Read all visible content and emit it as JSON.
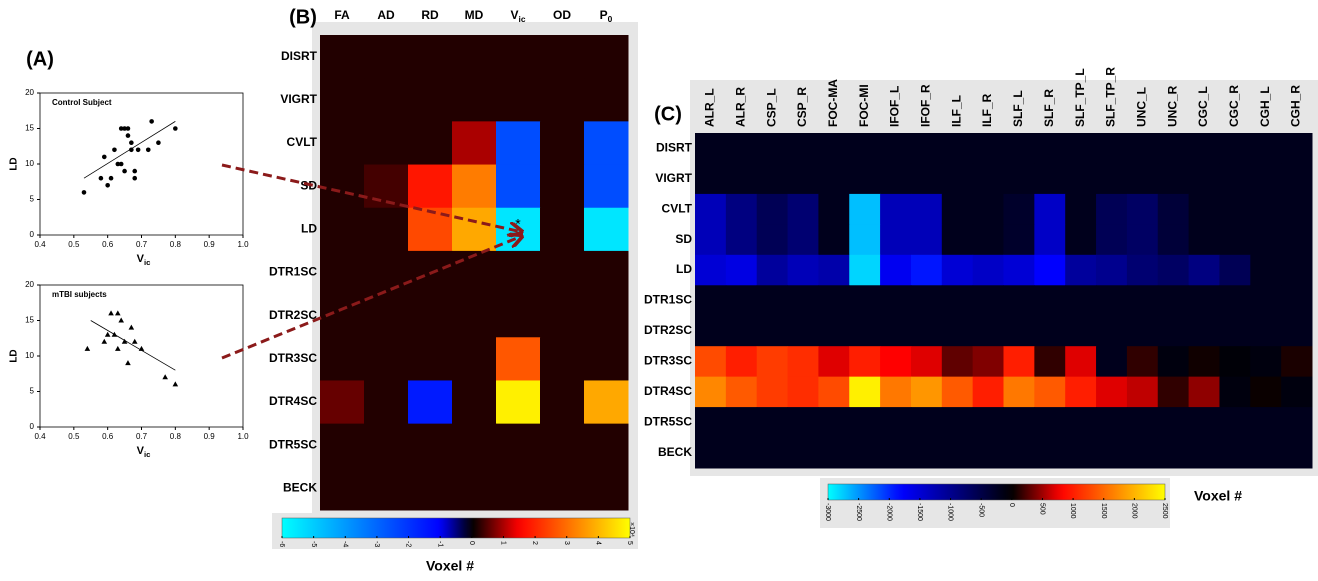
{
  "chart_data": [
    {
      "type": "scatter",
      "panel_label": "(A)",
      "title": "Control Subject",
      "marker": "circle",
      "color": "#000000",
      "x": [
        0.53,
        0.58,
        0.59,
        0.6,
        0.61,
        0.62,
        0.63,
        0.64,
        0.64,
        0.65,
        0.65,
        0.66,
        0.66,
        0.67,
        0.67,
        0.68,
        0.68,
        0.69,
        0.72,
        0.73,
        0.75,
        0.8
      ],
      "y": [
        6,
        8,
        11,
        7,
        8,
        12,
        10,
        15,
        10,
        15,
        9,
        14,
        15,
        13,
        12,
        9,
        8,
        12,
        12,
        16,
        13,
        15
      ],
      "fit": {
        "x": [
          0.53,
          0.8
        ],
        "y": [
          8,
          16
        ]
      },
      "xlim": [
        0.4,
        1.0
      ],
      "xticks": [
        0.4,
        0.5,
        0.6,
        0.7,
        0.8,
        0.9,
        {
          "value": 1,
          "label": "1.0"
        }
      ],
      "ylim": [
        0,
        20
      ],
      "yticks": [
        0,
        5,
        10,
        15,
        20
      ],
      "x_label": {
        "text": "V",
        "sub": "ic"
      },
      "y_label": "LD"
    },
    {
      "type": "scatter",
      "title": "mTBI subjects",
      "marker": "triangle",
      "color": "#000000",
      "x": [
        0.54,
        0.59,
        0.6,
        0.61,
        0.62,
        0.63,
        0.63,
        0.64,
        0.65,
        0.66,
        0.67,
        0.68,
        0.7,
        0.77,
        0.8
      ],
      "y": [
        11,
        12,
        13,
        16,
        13,
        16,
        11,
        15,
        12,
        9,
        14,
        12,
        11,
        7,
        6
      ],
      "fit": {
        "x": [
          0.55,
          0.8
        ],
        "y": [
          15,
          8
        ]
      },
      "xlim": [
        0.4,
        1.0
      ],
      "xticks": [
        0.4,
        0.5,
        0.6,
        0.7,
        0.8,
        0.9,
        {
          "value": 1,
          "label": "1.0"
        }
      ],
      "ylim": [
        0,
        20
      ],
      "yticks": [
        0,
        5,
        10,
        15,
        20
      ],
      "x_label": {
        "text": "V",
        "sub": "ic"
      },
      "y_label": "LD"
    },
    {
      "type": "heatmap",
      "panel_label": "(B)",
      "annotation": "*",
      "x": [
        "FA",
        "AD",
        "RD",
        "MD",
        {
          "text": "V",
          "sub": "ic"
        },
        "OD",
        {
          "text": "P",
          "sub": "0"
        }
      ],
      "y": [
        "DISRT",
        "VIGRT",
        "CVLT",
        "SD",
        "LD",
        "DTR1SC",
        "DTR2SC",
        "DTR3SC",
        "DTR4SC",
        "DTR5SC",
        "BECK"
      ],
      "values": [
        [
          0.2,
          0.2,
          0.2,
          0.2,
          0.2,
          0.2,
          0.2
        ],
        [
          0.2,
          0.2,
          0.2,
          0.2,
          0.2,
          0.2,
          0.2
        ],
        [
          0.2,
          0.2,
          0.2,
          1.0,
          -2.5,
          0.2,
          -2.5
        ],
        [
          0.2,
          0.4,
          1.8,
          3.2,
          -2.5,
          0.2,
          -2.5
        ],
        [
          0.2,
          0.2,
          2.5,
          3.8,
          -5.5,
          0.2,
          -5.5
        ],
        [
          0.2,
          0.2,
          0.2,
          0.2,
          0.2,
          0.2,
          0.2
        ],
        [
          0.2,
          0.2,
          0.2,
          0.2,
          0.2,
          0.2,
          0.2
        ],
        [
          0.2,
          0.2,
          0.2,
          0.2,
          2.7,
          0.2,
          0.2
        ],
        [
          0.6,
          0.2,
          -1.5,
          0.2,
          4.8,
          0.2,
          3.8
        ],
        [
          0.2,
          0.2,
          0.2,
          0.2,
          0.2,
          0.2,
          0.2
        ],
        [
          0.2,
          0.2,
          0.2,
          0.2,
          0.2,
          0.2,
          0.2
        ]
      ],
      "clim": [
        -6,
        5
      ],
      "colorbar_ticks": [
        -6,
        -5,
        -4,
        -3,
        -2,
        -1,
        0,
        1,
        2,
        3,
        4,
        5
      ],
      "colorbar_multiplier": "×10⁴",
      "colormap": [
        [
          -6,
          "#00ffff"
        ],
        [
          -1,
          "#0000ff"
        ],
        [
          0,
          "#000000"
        ],
        [
          1.5,
          "#ff0000"
        ],
        [
          5,
          "#ffff00"
        ]
      ],
      "colorbar_label": "Voxel #"
    },
    {
      "type": "heatmap",
      "panel_label": "(C)",
      "x": [
        "ALR_L",
        "ALR_R",
        "CSP_L",
        "CSP_R",
        "FOC-MA",
        "FOC-MI",
        "IFOF_L",
        "IFOF_R",
        "ILF_L",
        "ILF_R",
        "SLF_L",
        "SLF_R",
        "SLF_TP_L",
        "SLF_TP_R",
        "UNC_L",
        "UNC_R",
        "CGC_L",
        "CGC_R",
        "CGH_L",
        "CGH_R"
      ],
      "y": [
        "DISRT",
        "VIGRT",
        "CVLT",
        "SD",
        "LD",
        "DTR1SC",
        "DTR2SC",
        "DTR3SC",
        "DTR4SC",
        "DTR5SC",
        "BECK"
      ],
      "values": [
        [
          -200,
          -200,
          -200,
          -200,
          -200,
          -200,
          -200,
          -200,
          -200,
          -200,
          -200,
          -200,
          -200,
          -200,
          -200,
          -200,
          -200,
          -200,
          -200,
          -200
        ],
        [
          -200,
          -200,
          -200,
          -200,
          -200,
          -200,
          -200,
          -200,
          -200,
          -200,
          -200,
          -200,
          -200,
          -200,
          -200,
          -200,
          -200,
          -200,
          -200,
          -200
        ],
        [
          -1300,
          -900,
          -600,
          -800,
          -200,
          -2700,
          -1300,
          -1300,
          -200,
          -200,
          -300,
          -1400,
          -200,
          -600,
          -700,
          -400,
          -200,
          -200,
          -200,
          -200
        ],
        [
          -1300,
          -900,
          -600,
          -800,
          -200,
          -2700,
          -1300,
          -1300,
          -200,
          -200,
          -300,
          -1400,
          -200,
          -600,
          -700,
          -400,
          -200,
          -200,
          -200,
          -200
        ],
        [
          -1500,
          -1600,
          -1100,
          -1300,
          -1200,
          -2800,
          -1700,
          -1900,
          -1500,
          -1400,
          -1500,
          -1800,
          -1100,
          -1000,
          -800,
          -700,
          -900,
          -600,
          -200,
          -200
        ],
        [
          -200,
          -200,
          -200,
          -200,
          -200,
          -200,
          -200,
          -200,
          -200,
          -200,
          -200,
          -200,
          -200,
          -200,
          -200,
          -200,
          -200,
          -200,
          -200,
          -200
        ],
        [
          -200,
          -200,
          -200,
          -200,
          -200,
          -200,
          -200,
          -200,
          -200,
          -200,
          -200,
          -200,
          -200,
          -200,
          -200,
          -200,
          -200,
          -200,
          -200,
          -200
        ],
        [
          1300,
          1000,
          1200,
          1100,
          700,
          1000,
          800,
          700,
          300,
          400,
          1000,
          150,
          700,
          -200,
          150,
          -100,
          50,
          -50,
          -100,
          80
        ],
        [
          1700,
          1400,
          1200,
          1100,
          1300,
          2400,
          1600,
          1800,
          1400,
          1000,
          1600,
          1400,
          1000,
          700,
          600,
          150,
          450,
          -100,
          30,
          -100
        ],
        [
          -200,
          -200,
          -200,
          -200,
          -200,
          -200,
          -200,
          -200,
          -200,
          -200,
          -200,
          -200,
          -200,
          -200,
          -200,
          -200,
          -200,
          -200,
          -200,
          -200
        ],
        [
          -200,
          -200,
          -200,
          -200,
          -200,
          -200,
          -200,
          -200,
          -200,
          -200,
          -200,
          -200,
          -200,
          -200,
          -200,
          -200,
          -200,
          -200,
          -200,
          -200
        ]
      ],
      "clim": [
        -3000,
        2500
      ],
      "colorbar_ticks": [
        -3000,
        -2500,
        -2000,
        -1500,
        -1000,
        -500,
        0,
        500,
        1000,
        1500,
        2000,
        2500
      ],
      "colormap": [
        [
          -3000,
          "#00ffff"
        ],
        [
          -1800,
          "#0000ff"
        ],
        [
          0,
          "#000000"
        ],
        [
          800,
          "#ff0000"
        ],
        [
          2500,
          "#ffff00"
        ]
      ],
      "colorbar_label": "Voxel #"
    }
  ]
}
